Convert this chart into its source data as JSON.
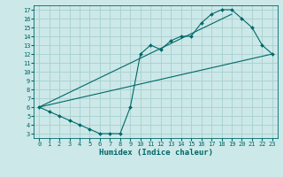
{
  "xlabel": "Humidex (Indice chaleur)",
  "ylabel": "",
  "background_color": "#cce8e8",
  "grid_color": "#a8d0d0",
  "line_color": "#006868",
  "xlim": [
    -0.5,
    23.5
  ],
  "ylim": [
    2.5,
    17.5
  ],
  "xticks": [
    0,
    1,
    2,
    3,
    4,
    5,
    6,
    7,
    8,
    9,
    10,
    11,
    12,
    13,
    14,
    15,
    16,
    17,
    18,
    19,
    20,
    21,
    22,
    23
  ],
  "yticks": [
    3,
    4,
    5,
    6,
    7,
    8,
    9,
    10,
    11,
    12,
    13,
    14,
    15,
    16,
    17
  ],
  "line1_x": [
    0,
    1,
    2,
    3,
    4,
    5,
    6,
    7,
    8,
    9,
    10,
    11,
    12,
    13,
    14,
    15,
    16,
    17,
    18,
    19,
    20,
    21,
    22,
    23
  ],
  "line1_y": [
    6.0,
    5.5,
    5.0,
    4.5,
    4.0,
    3.5,
    3.0,
    3.0,
    3.0,
    6.0,
    12.0,
    13.0,
    12.5,
    13.5,
    14.0,
    14.0,
    15.5,
    16.5,
    17.0,
    17.0,
    16.0,
    15.0,
    13.0,
    12.0
  ],
  "line2_x": [
    0,
    23
  ],
  "line2_y": [
    6.0,
    12.0
  ],
  "line3_x": [
    0,
    19
  ],
  "line3_y": [
    6.0,
    16.5
  ]
}
